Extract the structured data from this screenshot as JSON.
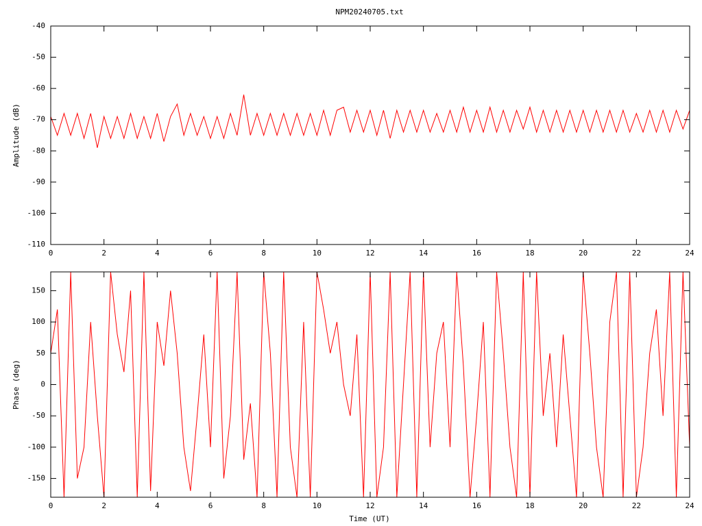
{
  "chart_data": [
    {
      "type": "line",
      "title": "NPM20240705.txt",
      "y_label": "Amplitude (dB)",
      "color": "#ff0000",
      "xlim": [
        0,
        24
      ],
      "xticks": [
        0,
        2,
        4,
        6,
        8,
        10,
        12,
        14,
        16,
        18,
        20,
        22,
        24
      ],
      "ylim": [
        -110,
        -40
      ],
      "yticks": [
        -40,
        -50,
        -60,
        -70,
        -80,
        -90,
        -100,
        -110
      ],
      "x": [
        0,
        0.25,
        0.5,
        0.75,
        1,
        1.25,
        1.5,
        1.75,
        2,
        2.25,
        2.5,
        2.75,
        3,
        3.25,
        3.5,
        3.75,
        4,
        4.25,
        4.5,
        4.75,
        5,
        5.25,
        5.5,
        5.75,
        6,
        6.25,
        6.5,
        6.75,
        7,
        7.25,
        7.5,
        7.75,
        8,
        8.25,
        8.5,
        8.75,
        9,
        9.25,
        9.5,
        9.75,
        10,
        10.25,
        10.5,
        10.75,
        11,
        11.25,
        11.5,
        11.75,
        12,
        12.25,
        12.5,
        12.75,
        13,
        13.25,
        13.5,
        13.75,
        14,
        14.25,
        14.5,
        14.75,
        15,
        15.25,
        15.5,
        15.75,
        16,
        16.25,
        16.5,
        16.75,
        17,
        17.25,
        17.5,
        17.75,
        18,
        18.25,
        18.5,
        18.75,
        19,
        19.25,
        19.5,
        19.75,
        20,
        20.25,
        20.5,
        20.75,
        21,
        21.25,
        21.5,
        21.75,
        22,
        22.25,
        22.5,
        22.75,
        23,
        23.25,
        23.5,
        23.75,
        24
      ],
      "values": [
        -69,
        -75,
        -68,
        -75,
        -68,
        -76,
        -68,
        -79,
        -69,
        -76,
        -69,
        -76,
        -68,
        -76,
        -69,
        -76,
        -68,
        -77,
        -69,
        -65,
        -75,
        -68,
        -75,
        -69,
        -76,
        -69,
        -76,
        -68,
        -75,
        -62,
        -75,
        -68,
        -75,
        -68,
        -75,
        -68,
        -75,
        -68,
        -75,
        -68,
        -75,
        -67,
        -75,
        -67,
        -66,
        -74,
        -67,
        -74,
        -67,
        -75,
        -67,
        -76,
        -67,
        -74,
        -67,
        -74,
        -67,
        -74,
        -68,
        -74,
        -67,
        -74,
        -66,
        -74,
        -67,
        -74,
        -66,
        -74,
        -67,
        -74,
        -67,
        -73,
        -66,
        -74,
        -67,
        -74,
        -67,
        -74,
        -67,
        -74,
        -67,
        -74,
        -67,
        -74,
        -67,
        -74,
        -67,
        -74,
        -68,
        -74,
        -67,
        -74,
        -67,
        -74,
        -67,
        -73,
        -67
      ]
    },
    {
      "type": "line",
      "x_label": "Time (UT)",
      "y_label": "Phase (deg)",
      "color": "#ff0000",
      "xlim": [
        0,
        24
      ],
      "xticks": [
        0,
        2,
        4,
        6,
        8,
        10,
        12,
        14,
        16,
        18,
        20,
        22,
        24
      ],
      "ylim": [
        -180,
        180
      ],
      "yticks": [
        -150,
        -100,
        -50,
        0,
        50,
        100,
        150
      ],
      "x": [
        0,
        0.25,
        0.5,
        0.75,
        1,
        1.25,
        1.5,
        1.75,
        2,
        2.25,
        2.5,
        2.75,
        3,
        3.25,
        3.5,
        3.75,
        4,
        4.25,
        4.5,
        4.75,
        5,
        5.25,
        5.5,
        5.75,
        6,
        6.25,
        6.5,
        6.75,
        7,
        7.25,
        7.5,
        7.75,
        8,
        8.25,
        8.5,
        8.75,
        9,
        9.25,
        9.5,
        9.75,
        10,
        10.25,
        10.5,
        10.75,
        11,
        11.25,
        11.5,
        11.75,
        12,
        12.25,
        12.5,
        12.75,
        13,
        13.25,
        13.5,
        13.75,
        14,
        14.25,
        14.5,
        14.75,
        15,
        15.25,
        15.5,
        15.75,
        16,
        16.25,
        16.5,
        16.75,
        17,
        17.25,
        17.5,
        17.75,
        18,
        18.25,
        18.5,
        18.75,
        19,
        19.25,
        19.5,
        19.75,
        20,
        20.25,
        20.5,
        20.75,
        21,
        21.25,
        21.5,
        21.75,
        22,
        22.25,
        22.5,
        22.75,
        23,
        23.25,
        23.5,
        23.75,
        24
      ],
      "values": [
        50,
        120,
        -180,
        180,
        -150,
        -100,
        100,
        -50,
        -180,
        180,
        80,
        20,
        150,
        -180,
        180,
        -170,
        100,
        30,
        150,
        50,
        -100,
        -170,
        -50,
        80,
        -100,
        180,
        -150,
        -50,
        180,
        -120,
        -30,
        -180,
        180,
        50,
        -180,
        180,
        -100,
        -180,
        100,
        -180,
        180,
        120,
        50,
        100,
        0,
        -50,
        80,
        -180,
        180,
        -180,
        -100,
        180,
        -180,
        0,
        180,
        -180,
        180,
        -100,
        50,
        100,
        -100,
        180,
        30,
        -180,
        -50,
        100,
        -180,
        180,
        50,
        -100,
        -180,
        180,
        -180,
        180,
        -50,
        50,
        -100,
        80,
        -50,
        -180,
        180,
        50,
        -100,
        -180,
        100,
        180,
        -180,
        180,
        -180,
        -100,
        50,
        120,
        -50,
        180,
        -180,
        180,
        -100
      ]
    }
  ]
}
